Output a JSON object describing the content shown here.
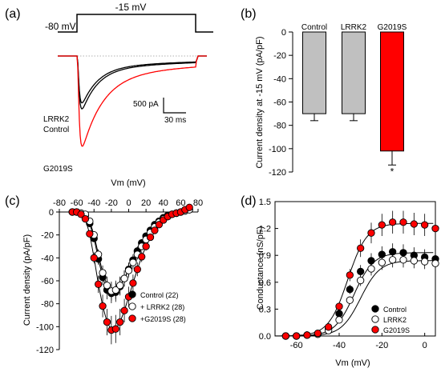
{
  "colors": {
    "control": "#000000",
    "lrrk2": "#000000",
    "g2019s": "#ff0000",
    "bar_gray": "#c0c0c0",
    "dotted": "#999999"
  },
  "chart_data": [
    {
      "panel": "(a)",
      "type": "line",
      "protocol": {
        "holding_label": "-80 mV",
        "step_label": "-15 mV"
      },
      "trace_labels": [
        "LRRK2",
        "Control",
        "G2019S"
      ],
      "scale_bar": {
        "current_label": "500 pA",
        "time_label": "30 ms"
      },
      "series": [
        {
          "name": "Control",
          "color": "#000000",
          "peak": -0.55
        },
        {
          "name": "LRRK2",
          "color": "#000000",
          "peak": -0.62
        },
        {
          "name": "G2019S",
          "color": "#ff0000",
          "peak": -1.0
        }
      ]
    },
    {
      "panel": "(b)",
      "type": "bar",
      "categories": [
        "Control",
        "LRRK2",
        "G2019S"
      ],
      "values": [
        -70,
        -70,
        -102
      ],
      "errors": [
        6,
        6,
        12
      ],
      "colors": [
        "#c0c0c0",
        "#c0c0c0",
        "#ff0000"
      ],
      "ylabel": "Current density at -15 mV (pA/pF)",
      "ylim": [
        -120,
        0
      ],
      "yticks": [
        0,
        -20,
        -40,
        -60,
        -80,
        -100,
        -120
      ],
      "significance": "*"
    },
    {
      "panel": "(c)",
      "type": "scatter",
      "xlabel": "Vm (mV)",
      "ylabel": "Current density (pA/pF)",
      "xlim": [
        -80,
        80
      ],
      "ylim": [
        -120,
        0
      ],
      "xticks": [
        -80,
        -60,
        -40,
        -20,
        0,
        20,
        40,
        60,
        80
      ],
      "yticks": [
        0,
        -20,
        -40,
        -60,
        -80,
        -100,
        -120
      ],
      "x": [
        -65,
        -60,
        -55,
        -50,
        -45,
        -40,
        -35,
        -30,
        -25,
        -20,
        -15,
        -10,
        -5,
        0,
        5,
        10,
        15,
        20,
        25,
        30,
        35,
        40,
        45,
        50,
        55,
        60,
        65,
        70
      ],
      "series": [
        {
          "name": "Control (22)",
          "marker": "filled-black",
          "values": [
            0,
            0,
            -1,
            -3,
            -10,
            -23,
            -41,
            -57,
            -68,
            -71,
            -70,
            -65,
            -58,
            -50,
            -42,
            -34,
            -27,
            -21,
            -16,
            -11,
            -8,
            -5,
            -3,
            -2,
            -1,
            0,
            1,
            2
          ]
        },
        {
          "name": "+ LRRK2 (28)",
          "marker": "open",
          "values": [
            0,
            0,
            -1,
            -2,
            -8,
            -20,
            -37,
            -53,
            -64,
            -69,
            -68,
            -64,
            -58,
            -51,
            -44,
            -37,
            -30,
            -24,
            -18,
            -13,
            -9,
            -6,
            -4,
            -2,
            -1,
            0,
            1,
            2
          ]
        },
        {
          "name": "+G2019S (28)",
          "marker": "filled-red",
          "values": [
            0,
            0,
            -2,
            -6,
            -19,
            -40,
            -63,
            -82,
            -96,
            -103,
            -102,
            -96,
            -86,
            -74,
            -62,
            -50,
            -39,
            -30,
            -22,
            -16,
            -11,
            -7,
            -4,
            -2,
            -1,
            0,
            2,
            4
          ]
        }
      ]
    },
    {
      "panel": "(d)",
      "type": "scatter",
      "xlabel": "Vm (mV)",
      "ylabel": "Conductance (nS/pF)",
      "xlim": [
        -70,
        5
      ],
      "ylim": [
        0,
        1.5
      ],
      "xticks": [
        -60,
        -40,
        -20,
        0
      ],
      "yticks": [
        0.0,
        0.3,
        0.6,
        0.9,
        1.2,
        1.5
      ],
      "x": [
        -65,
        -60,
        -55,
        -50,
        -45,
        -40,
        -35,
        -30,
        -25,
        -20,
        -15,
        -10,
        -5,
        0,
        5
      ],
      "series": [
        {
          "name": "Control",
          "marker": "filled-black",
          "values": [
            0,
            0,
            0.01,
            0.02,
            0.08,
            0.25,
            0.52,
            0.72,
            0.84,
            0.91,
            0.94,
            0.93,
            0.9,
            0.88,
            0.86
          ]
        },
        {
          "name": "LRRK2",
          "marker": "open",
          "values": [
            0,
            0,
            0.01,
            0.02,
            0.06,
            0.18,
            0.4,
            0.62,
            0.75,
            0.82,
            0.85,
            0.85,
            0.84,
            0.83,
            0.81
          ]
        },
        {
          "name": "G2019S",
          "marker": "filled-red",
          "values": [
            0,
            0,
            0.01,
            0.03,
            0.1,
            0.33,
            0.68,
            0.98,
            1.15,
            1.24,
            1.27,
            1.27,
            1.25,
            1.24,
            1.2
          ]
        }
      ]
    }
  ]
}
